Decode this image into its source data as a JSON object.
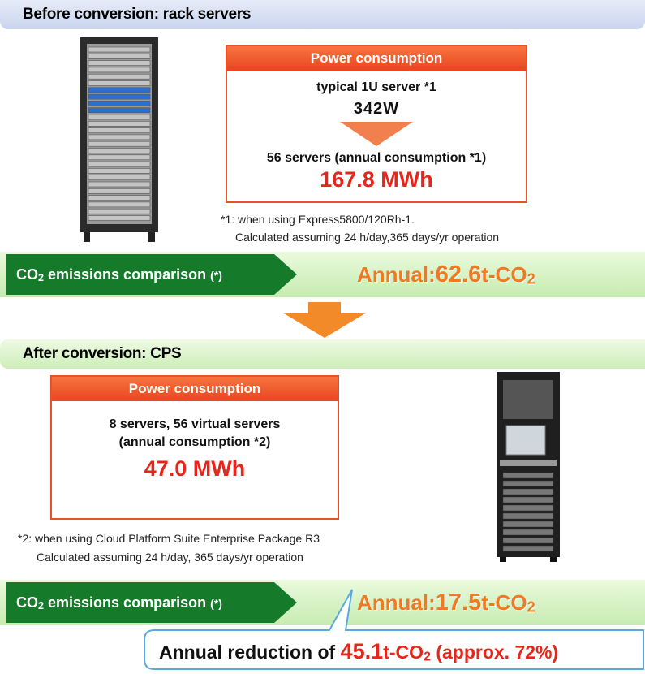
{
  "before": {
    "heading": "Before conversion: rack servers",
    "power_box": {
      "title": "Power consumption",
      "line1": "typical 1U server *1",
      "watts": "342W",
      "line2": "56 servers (annual consumption *1)",
      "total": "167.8 MWh"
    },
    "footnote": [
      "*1: when using Express5800/120Rh-1.",
      "Calculated assuming 24 h/day,365 days/yr operation"
    ],
    "emissions": {
      "label": "CO",
      "label_sub": "2",
      "label_rest": " emissions comparison",
      "note": "(*)",
      "annual": "Annual",
      "colon": ":",
      "value": "62.6",
      "unit": "t-CO",
      "unit_sub": "2"
    }
  },
  "after": {
    "heading": "After conversion: CPS",
    "power_box": {
      "title": "Power consumption",
      "line1": "8 servers, 56 virtual servers",
      "line2": "(annual consumption *2)",
      "total": "47.0 MWh"
    },
    "footnote": [
      "*2: when using Cloud Platform Suite Enterprise Package R3",
      "Calculated assuming 24 h/day, 365 days/yr operation"
    ],
    "emissions": {
      "label": "CO",
      "label_sub": "2",
      "label_rest": " emissions comparison",
      "note": "(*)",
      "annual": "Annual",
      "colon": ":",
      "value": "17.5",
      "unit": "t-CO",
      "unit_sub": "2"
    }
  },
  "reduction": {
    "prefix": "Annual reduction of ",
    "value": "45.1",
    "unit": "t-CO",
    "unit_sub": "2",
    "suffix": "(approx. 72%)"
  }
}
